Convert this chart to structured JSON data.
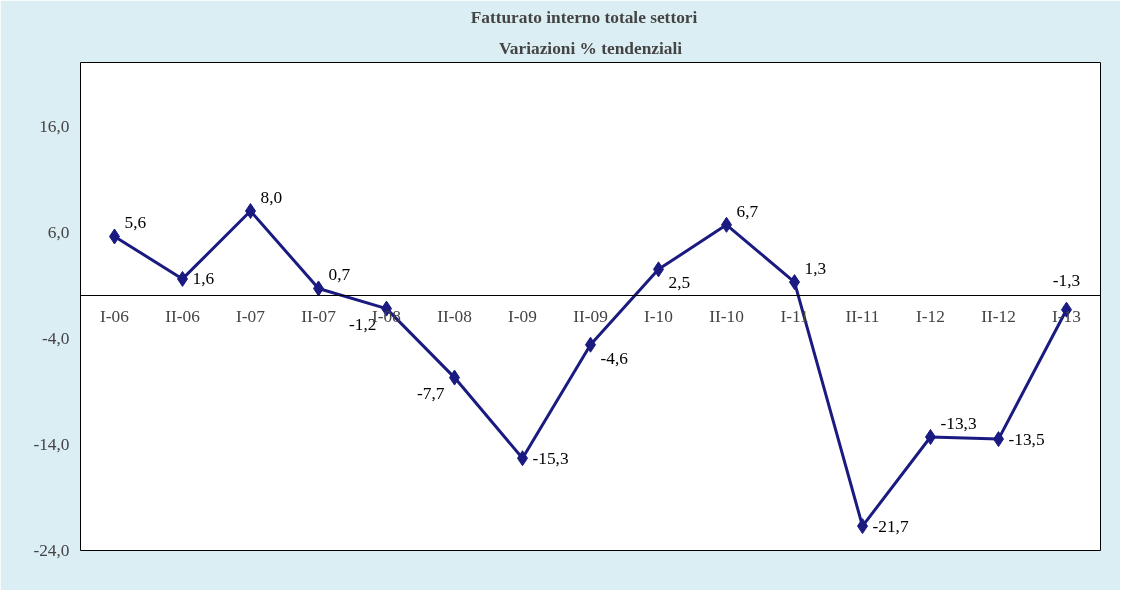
{
  "chart_data": {
    "type": "line",
    "title": "Fatturato interno    totale settori",
    "subtitle": "Variazioni % tendenziali",
    "categories": [
      "I-06",
      "II-06",
      "I-07",
      "II-07",
      "I-08",
      "II-08",
      "I-09",
      "II-09",
      "I-10",
      "II-10",
      "I-11",
      "II-11",
      "I-12",
      "II-12",
      "I-13"
    ],
    "series": [
      {
        "color": "#1a1a80",
        "values": [
          5.6,
          1.6,
          8.0,
          0.7,
          -1.2,
          -7.7,
          -15.3,
          -4.6,
          2.5,
          6.7,
          1.3,
          -21.7,
          -13.3,
          -13.5,
          -1.3
        ],
        "value_labels": [
          "5,6",
          "1,6",
          "8,0",
          "0,7",
          "-1,2",
          "-7,7",
          "-15,3",
          "-4,6",
          "2,5",
          "6,7",
          "1,3",
          "-21,7",
          "-13,3",
          "-13,5",
          "-1,3"
        ]
      }
    ],
    "ylim": [
      -24,
      22
    ],
    "yticks": [
      {
        "value": -24,
        "label": "-24,0"
      },
      {
        "value": -14,
        "label": "-14,0"
      },
      {
        "value": -4,
        "label": "-4,0"
      },
      {
        "value": 6,
        "label": "6,0"
      },
      {
        "value": 16,
        "label": "16,0"
      }
    ],
    "grid": false,
    "marker": "diamond",
    "line_style": "solid"
  }
}
